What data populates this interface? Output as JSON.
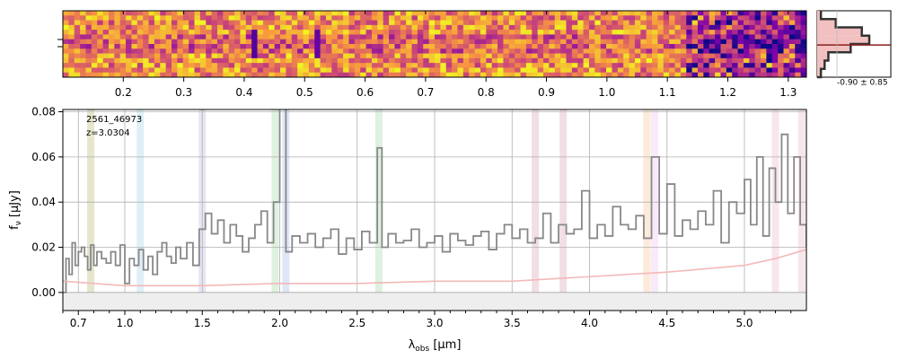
{
  "colors": {
    "spectrum": "#888888",
    "contam": "#f4b8b8",
    "grid": "#b0b0b0",
    "zero_fill": "#eeeeee",
    "hist_fill": "#f2c0c0",
    "hist_line": "#8a1f1f",
    "hist_outline": "#333333"
  },
  "chart_data": [
    {
      "type": "heatmap",
      "name": "2d-spectrum",
      "colormap": "plasma",
      "description_axis": "redshift / wavelength ticks",
      "tick_labels": [
        "0.2",
        "0.3",
        "0.4",
        "0.5",
        "0.6",
        "0.7",
        "0.8",
        "0.9",
        "1.0",
        "1.1",
        "1.2",
        "1.3"
      ],
      "tick_values": [
        0.2,
        0.3,
        0.4,
        0.5,
        0.6,
        0.7,
        0.8,
        0.9,
        1.0,
        1.1,
        1.2,
        1.3
      ],
      "xlim": [
        0.1,
        1.33
      ]
    },
    {
      "type": "histogram",
      "name": "offset-histogram",
      "annotation": "-0.90 ± 0.85",
      "bins": [
        -4,
        -3.2,
        -2.4,
        -1.6,
        -0.8,
        0.0,
        0.8,
        1.6,
        2.4
      ],
      "counts": [
        1,
        2,
        3,
        9,
        14,
        12,
        5,
        1
      ],
      "mean": -0.9
    },
    {
      "type": "line",
      "name": "1d-spectrum",
      "object_id": "2561_46973",
      "redshift_label": "z=3.0304",
      "xlabel": "λ_obs [μm]",
      "xlabel_main": "λ",
      "xlabel_sub": "obs",
      "xlabel_unit": " [μm]",
      "ylabel": "f_ν [μJy]",
      "ylabel_main": "f",
      "ylabel_sub": "ν",
      "ylabel_unit": " [μJy]",
      "xlim": [
        0.6,
        5.4
      ],
      "ylim": [
        -0.008,
        0.081
      ],
      "x_ticks": [
        "0.7",
        "1.0",
        "1.5",
        "2.0",
        "2.5",
        "3.0",
        "3.5",
        "4.0",
        "4.5",
        "5.0"
      ],
      "x_tick_values": [
        0.7,
        1.0,
        1.5,
        2.0,
        2.5,
        3.0,
        3.5,
        4.0,
        4.5,
        5.0
      ],
      "y_ticks": [
        "0.00",
        "0.02",
        "0.04",
        "0.06",
        "0.08"
      ],
      "y_tick_values": [
        0.0,
        0.02,
        0.04,
        0.06,
        0.08
      ],
      "line_bands": [
        {
          "x": 0.78,
          "color": "#c8c890"
        },
        {
          "x": 1.1,
          "color": "#b8dcf0"
        },
        {
          "x": 1.5,
          "color": "#c8c8e8"
        },
        {
          "x": 1.97,
          "color": "#b8e0b8"
        },
        {
          "x": 2.04,
          "color": "#b8c8f0"
        },
        {
          "x": 2.64,
          "color": "#b8e0b8"
        },
        {
          "x": 3.65,
          "color": "#e0b8c0"
        },
        {
          "x": 3.83,
          "color": "#e0b8c0"
        },
        {
          "x": 4.37,
          "color": "#f8d0b0"
        },
        {
          "x": 4.42,
          "color": "#f0d0f0"
        },
        {
          "x": 5.2,
          "color": "#f0c8d8"
        },
        {
          "x": 5.37,
          "color": "#f0c8d8"
        }
      ],
      "series": [
        {
          "name": "flux",
          "x": [
            0.6,
            0.62,
            0.64,
            0.66,
            0.68,
            0.7,
            0.72,
            0.74,
            0.76,
            0.78,
            0.8,
            0.82,
            0.85,
            0.88,
            0.91,
            0.94,
            0.97,
            1.0,
            1.03,
            1.06,
            1.09,
            1.12,
            1.15,
            1.18,
            1.21,
            1.24,
            1.27,
            1.3,
            1.33,
            1.36,
            1.4,
            1.44,
            1.48,
            1.52,
            1.56,
            1.6,
            1.64,
            1.68,
            1.72,
            1.76,
            1.8,
            1.84,
            1.88,
            1.92,
            1.96,
            2.0,
            2.04,
            2.08,
            2.13,
            2.18,
            2.23,
            2.28,
            2.33,
            2.38,
            2.43,
            2.48,
            2.53,
            2.58,
            2.63,
            2.66,
            2.7,
            2.75,
            2.8,
            2.85,
            2.9,
            2.95,
            3.0,
            3.05,
            3.1,
            3.15,
            3.2,
            3.25,
            3.3,
            3.35,
            3.4,
            3.45,
            3.5,
            3.55,
            3.6,
            3.65,
            3.7,
            3.75,
            3.8,
            3.85,
            3.9,
            3.95,
            4.0,
            4.05,
            4.1,
            4.15,
            4.2,
            4.25,
            4.3,
            4.35,
            4.4,
            4.45,
            4.5,
            4.55,
            4.6,
            4.65,
            4.7,
            4.75,
            4.8,
            4.85,
            4.9,
            4.95,
            5.0,
            5.04,
            5.08,
            5.12,
            5.16,
            5.2,
            5.24,
            5.28,
            5.32,
            5.36,
            5.4
          ],
          "values": [
            0.0,
            0.015,
            0.008,
            0.022,
            0.012,
            0.018,
            0.02,
            0.016,
            0.01,
            0.021,
            0.012,
            0.018,
            0.015,
            0.013,
            0.018,
            0.012,
            0.021,
            0.004,
            0.015,
            0.012,
            0.019,
            0.01,
            0.016,
            0.008,
            0.018,
            0.022,
            0.016,
            0.013,
            0.02,
            0.015,
            0.022,
            0.012,
            0.028,
            0.035,
            0.026,
            0.032,
            0.022,
            0.03,
            0.025,
            0.018,
            0.024,
            0.03,
            0.036,
            0.022,
            0.04,
            0.085,
            0.018,
            0.025,
            0.022,
            0.026,
            0.02,
            0.024,
            0.028,
            0.017,
            0.024,
            0.019,
            0.027,
            0.022,
            0.064,
            0.02,
            0.026,
            0.022,
            0.023,
            0.028,
            0.02,
            0.022,
            0.025,
            0.018,
            0.026,
            0.023,
            0.021,
            0.025,
            0.027,
            0.019,
            0.026,
            0.03,
            0.024,
            0.028,
            0.022,
            0.024,
            0.035,
            0.022,
            0.03,
            0.026,
            0.028,
            0.045,
            0.024,
            0.03,
            0.025,
            0.038,
            0.03,
            0.028,
            0.034,
            0.024,
            0.06,
            0.026,
            0.048,
            0.025,
            0.032,
            0.028,
            0.036,
            0.03,
            0.045,
            0.022,
            0.04,
            0.035,
            0.05,
            0.03,
            0.06,
            0.025,
            0.055,
            0.04,
            0.07,
            0.035,
            0.06,
            0.03,
            0.02
          ],
          "color": "#888888"
        },
        {
          "name": "contamination",
          "x": [
            0.6,
            0.8,
            1.0,
            1.5,
            2.0,
            2.5,
            3.0,
            3.5,
            4.0,
            4.5,
            5.0,
            5.2,
            5.4
          ],
          "values": [
            0.005,
            0.004,
            0.003,
            0.003,
            0.004,
            0.004,
            0.005,
            0.005,
            0.007,
            0.009,
            0.012,
            0.015,
            0.019
          ],
          "color": "#f4b8b8"
        }
      ]
    }
  ]
}
